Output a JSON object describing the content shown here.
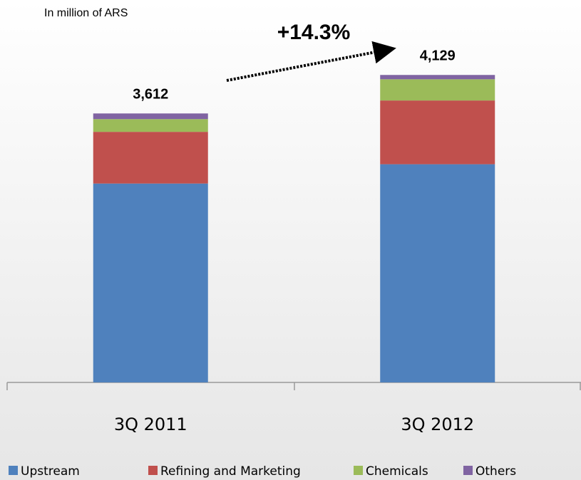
{
  "chart_data": {
    "type": "stacked_bar",
    "subtitle": "In million of ARS",
    "annotation": "+14.3%",
    "categories": [
      "3Q 2011",
      "3Q 2012"
    ],
    "series": [
      {
        "name": "Upstream",
        "color": "#4f81bd",
        "values": [
          2671,
          2930
        ]
      },
      {
        "name": "Refining and Marketing",
        "color": "#c0504d",
        "values": [
          694,
          856
        ]
      },
      {
        "name": "Chemicals",
        "color": "#9bbb59",
        "values": [
          171,
          285
        ]
      },
      {
        "name": "Others",
        "color": "#8064a2",
        "values": [
          76,
          58
        ]
      }
    ],
    "totals": [
      3612,
      4129
    ],
    "total_labels": [
      "3,612",
      "4,129"
    ],
    "ylim": [
      0,
      4600
    ]
  }
}
